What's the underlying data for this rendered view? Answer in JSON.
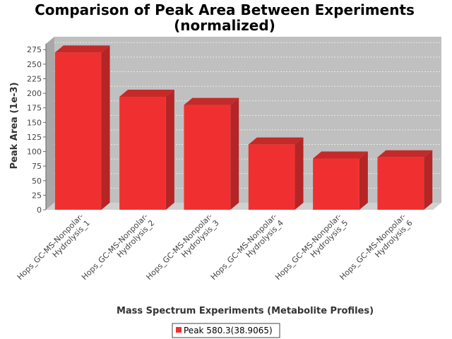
{
  "chart_data": {
    "type": "bar",
    "title_lines": [
      "Comparison of Peak Area Between Experiments",
      "(normalized)"
    ],
    "xlabel": "Mass Spectrum Experiments (Metabolite Profiles)",
    "ylabel": "Peak Area (1e-3)",
    "ylim": [
      0,
      285
    ],
    "yticks": [
      0,
      25,
      50,
      75,
      100,
      125,
      150,
      175,
      200,
      225,
      250,
      275
    ],
    "grid": true,
    "three_d": true,
    "legend_position": "bottom",
    "categories": [
      [
        "Hops_GC-MS-Nonpolar-",
        "Hydrolysis_1"
      ],
      [
        "Hops_GC-MS-Nonpolar-",
        "Hydrolysis_2"
      ],
      [
        "Hops_GC-MS-Nonpolar-",
        "Hydrolysis_3"
      ],
      [
        "Hops_GC-MS-Nonpolar-",
        "Hydrolysis_4"
      ],
      [
        "Hops_GC-MS-Nonpolar-",
        "Hydrolysis_5"
      ],
      [
        "Hops_GC-MS-Nonpolar-",
        "Hydrolysis_6"
      ]
    ],
    "series": [
      {
        "name": "Peak 580.3(38.9065)",
        "color": "#f03030",
        "values": [
          270,
          194,
          180,
          112,
          88,
          90
        ]
      }
    ],
    "colors": {
      "plot_back": "#c0c0c0",
      "plot_floor": "#d0d0d0",
      "plot_side": "#a8a8a8",
      "bar_front": "#f03030",
      "bar_top": "#c42a2a",
      "bar_side": "#b52525",
      "grid": "#e8e8e8"
    }
  }
}
